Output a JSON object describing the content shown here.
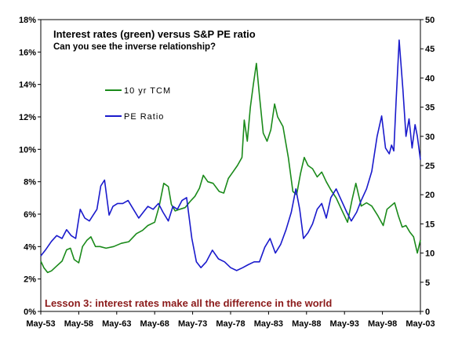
{
  "chart_data": {
    "type": "line",
    "title": "Interest rates (green) versus S&P PE ratio",
    "subtitle": "Can you see the inverse relationship?",
    "annotation": "Lesson 3: interest rates make all the difference in the world",
    "annotation_color": "#8b1a1a",
    "x_tick_labels": [
      "May-53",
      "May-58",
      "May-63",
      "May-68",
      "May-73",
      "May-78",
      "May-83",
      "May-88",
      "May-93",
      "May-98",
      "May-03"
    ],
    "xlim": [
      1953.4,
      2003.4
    ],
    "y_left": {
      "ticks": [
        "0%",
        "2%",
        "4%",
        "6%",
        "8%",
        "10%",
        "12%",
        "14%",
        "16%",
        "18%"
      ],
      "ylim": [
        0,
        18
      ]
    },
    "y_right": {
      "ticks": [
        "0",
        "5",
        "10",
        "15",
        "20",
        "25",
        "30",
        "35",
        "40",
        "45",
        "50"
      ],
      "ylim": [
        0,
        50
      ]
    },
    "grid": false,
    "legend_position": "upper-left",
    "series": [
      {
        "name": "10 yr TCM",
        "axis": "left",
        "color": "#1a8a1a",
        "x": [
          1953.4,
          1953.8,
          1954.3,
          1954.8,
          1955.5,
          1956.2,
          1956.8,
          1957.3,
          1957.8,
          1958.4,
          1958.9,
          1959.5,
          1960.0,
          1960.6,
          1961.2,
          1962.0,
          1963.0,
          1964.0,
          1965.0,
          1966.0,
          1966.8,
          1967.5,
          1968.4,
          1969.0,
          1969.6,
          1970.2,
          1970.6,
          1971.1,
          1971.7,
          1972.4,
          1973.1,
          1973.7,
          1974.3,
          1974.8,
          1975.4,
          1976.1,
          1976.9,
          1977.5,
          1978.1,
          1978.7,
          1979.3,
          1979.9,
          1980.2,
          1980.6,
          1981.0,
          1981.4,
          1981.8,
          1982.2,
          1982.7,
          1983.2,
          1983.7,
          1984.2,
          1984.6,
          1985.3,
          1986.0,
          1986.6,
          1987.1,
          1987.6,
          1988.1,
          1988.6,
          1989.2,
          1989.8,
          1990.4,
          1991.0,
          1991.6,
          1992.3,
          1993.0,
          1993.8,
          1994.4,
          1994.9,
          1995.6,
          1996.3,
          1997.0,
          1997.8,
          1998.5,
          1999.0,
          1999.5,
          2000.0,
          2000.5,
          2001.0,
          2001.5,
          2002.0,
          2002.5,
          2003.0,
          2003.4
        ],
        "y": [
          3.1,
          2.7,
          2.4,
          2.5,
          2.8,
          3.1,
          3.8,
          3.9,
          3.2,
          3.0,
          4.0,
          4.4,
          4.6,
          4.0,
          4.0,
          3.9,
          4.0,
          4.2,
          4.3,
          4.8,
          5.0,
          5.3,
          5.5,
          6.5,
          7.9,
          7.7,
          6.6,
          6.2,
          6.3,
          6.4,
          6.8,
          7.1,
          7.6,
          8.4,
          8.0,
          7.9,
          7.4,
          7.3,
          8.2,
          8.6,
          9.0,
          9.5,
          11.8,
          10.5,
          12.6,
          14.0,
          15.3,
          13.3,
          11.0,
          10.5,
          11.2,
          12.8,
          12.0,
          11.4,
          9.5,
          7.4,
          7.2,
          8.5,
          9.5,
          9.0,
          8.8,
          8.3,
          8.6,
          8.0,
          7.5,
          7.0,
          6.3,
          5.5,
          6.9,
          7.9,
          6.5,
          6.7,
          6.5,
          5.9,
          5.3,
          6.3,
          6.5,
          6.7,
          5.9,
          5.2,
          5.3,
          4.9,
          4.6,
          3.6,
          4.4
        ]
      },
      {
        "name": "PE Ratio",
        "axis": "right",
        "color": "#1a1acc",
        "x": [
          1953.4,
          1954.0,
          1954.8,
          1955.5,
          1956.2,
          1956.8,
          1957.4,
          1958.0,
          1958.6,
          1959.2,
          1959.8,
          1960.3,
          1960.8,
          1961.3,
          1961.8,
          1962.4,
          1962.9,
          1963.5,
          1964.2,
          1964.9,
          1965.6,
          1966.3,
          1966.9,
          1967.5,
          1968.2,
          1968.9,
          1969.5,
          1970.2,
          1970.8,
          1971.4,
          1972.0,
          1972.6,
          1973.3,
          1973.9,
          1974.5,
          1975.2,
          1976.0,
          1976.8,
          1977.6,
          1978.4,
          1979.2,
          1980.0,
          1980.7,
          1981.5,
          1982.2,
          1982.9,
          1983.6,
          1984.3,
          1985.0,
          1985.7,
          1986.4,
          1987.0,
          1987.5,
          1988.0,
          1988.6,
          1989.2,
          1989.8,
          1990.4,
          1991.0,
          1991.6,
          1992.3,
          1993.0,
          1993.7,
          1994.3,
          1995.0,
          1995.6,
          1996.3,
          1997.0,
          1997.7,
          1998.3,
          1998.8,
          1999.3,
          1999.6,
          1999.9,
          2000.2,
          2000.6,
          2001.1,
          2001.5,
          2001.9,
          2002.3,
          2002.7,
          2003.0,
          2003.4
        ],
        "y": [
          9.5,
          10.5,
          12.0,
          13.0,
          12.5,
          14.0,
          13.0,
          12.5,
          17.5,
          16.0,
          15.5,
          16.5,
          17.5,
          21.5,
          22.5,
          16.5,
          18.0,
          18.5,
          18.5,
          19.0,
          17.5,
          16.0,
          17.0,
          18.0,
          17.5,
          18.5,
          17.0,
          15.5,
          18.0,
          17.5,
          19.0,
          19.5,
          12.5,
          8.5,
          7.5,
          8.5,
          10.5,
          9.0,
          8.5,
          7.5,
          7.0,
          7.5,
          8.0,
          8.5,
          8.5,
          11.0,
          12.5,
          10.0,
          11.5,
          14.0,
          17.0,
          21.0,
          17.5,
          12.5,
          13.5,
          15.0,
          17.5,
          18.5,
          16.0,
          19.5,
          21.0,
          19.0,
          17.0,
          15.5,
          17.0,
          19.0,
          21.0,
          24.0,
          30.0,
          33.5,
          28.0,
          27.0,
          28.5,
          27.5,
          36.0,
          46.5,
          38.0,
          30.0,
          33.0,
          28.0,
          32.0,
          30.0,
          26.0
        ]
      }
    ]
  }
}
